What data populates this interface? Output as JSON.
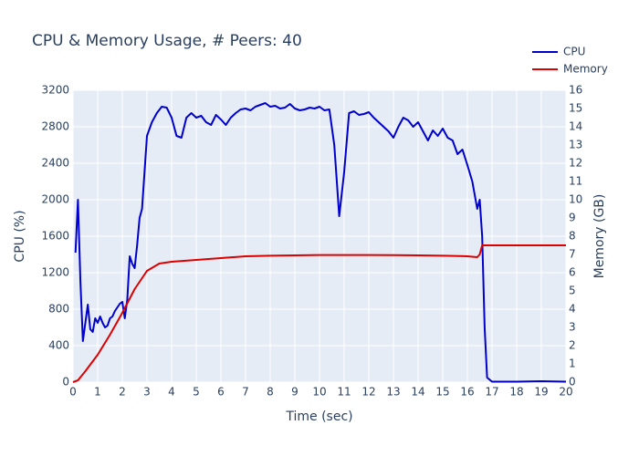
{
  "chart_data": {
    "type": "line",
    "title": "CPU & Memory Usage, # Peers: 40",
    "x_label": "Time (sec)",
    "y_label": "CPU (%)",
    "y2_label": "Memory (GB)",
    "xlim": [
      0,
      20
    ],
    "xticks": [
      0,
      1,
      2,
      3,
      4,
      5,
      6,
      7,
      8,
      9,
      10,
      11,
      12,
      13,
      14,
      15,
      16,
      17,
      18,
      19,
      20
    ],
    "ylim": [
      0,
      3200
    ],
    "yticks": [
      0,
      400,
      800,
      1200,
      1600,
      2000,
      2400,
      2800,
      3200
    ],
    "y2lim": [
      0,
      16
    ],
    "y2ticks": [
      0,
      1,
      2,
      3,
      4,
      5,
      6,
      7,
      8,
      9,
      10,
      11,
      12,
      13,
      14,
      15,
      16
    ],
    "grid": true,
    "legend": "top-right",
    "background": "#e5ecf6",
    "series": [
      {
        "name": "CPU",
        "color": "#0000cc",
        "x": [
          0.1,
          0.2,
          0.3,
          0.4,
          0.5,
          0.6,
          0.7,
          0.8,
          0.9,
          1.0,
          1.1,
          1.2,
          1.3,
          1.4,
          1.5,
          1.6,
          1.7,
          1.8,
          1.9,
          2.0,
          2.1,
          2.2,
          2.3,
          2.4,
          2.5,
          2.6,
          2.7,
          2.8,
          2.9,
          3.0,
          3.2,
          3.4,
          3.6,
          3.8,
          4.0,
          4.2,
          4.4,
          4.6,
          4.8,
          5.0,
          5.2,
          5.4,
          5.6,
          5.8,
          6.0,
          6.2,
          6.4,
          6.6,
          6.8,
          7.0,
          7.2,
          7.4,
          7.6,
          7.8,
          8.0,
          8.2,
          8.4,
          8.6,
          8.8,
          9.0,
          9.2,
          9.4,
          9.6,
          9.8,
          10.0,
          10.2,
          10.4,
          10.6,
          10.8,
          11.0,
          11.2,
          11.4,
          11.6,
          11.8,
          12.0,
          12.2,
          12.4,
          12.6,
          12.8,
          13.0,
          13.2,
          13.4,
          13.6,
          13.8,
          14.0,
          14.2,
          14.4,
          14.6,
          14.8,
          15.0,
          15.2,
          15.4,
          15.6,
          15.8,
          16.0,
          16.2,
          16.4,
          16.5,
          16.6,
          16.7,
          16.8,
          17.0,
          18.0,
          19.0,
          20.0
        ],
        "values": [
          1420,
          2000,
          1100,
          450,
          650,
          850,
          580,
          550,
          700,
          650,
          720,
          650,
          600,
          620,
          700,
          720,
          780,
          820,
          860,
          880,
          700,
          900,
          1380,
          1300,
          1250,
          1500,
          1800,
          1900,
          2300,
          2700,
          2850,
          2950,
          3020,
          3010,
          2900,
          2700,
          2680,
          2900,
          2950,
          2900,
          2920,
          2850,
          2820,
          2930,
          2880,
          2820,
          2900,
          2950,
          2990,
          3000,
          2980,
          3020,
          3040,
          3060,
          3020,
          3030,
          3000,
          3010,
          3050,
          3000,
          2980,
          2990,
          3010,
          3000,
          3020,
          2980,
          2990,
          2600,
          1820,
          2300,
          2950,
          2970,
          2930,
          2940,
          2960,
          2900,
          2850,
          2800,
          2750,
          2680,
          2800,
          2900,
          2870,
          2800,
          2850,
          2750,
          2650,
          2760,
          2700,
          2780,
          2680,
          2650,
          2500,
          2550,
          2380,
          2200,
          1900,
          2000,
          1600,
          600,
          50,
          5,
          5,
          10,
          5
        ]
      },
      {
        "name": "Memory",
        "color": "#dd0000",
        "axis": "y2",
        "x": [
          0,
          0.2,
          0.5,
          1,
          1.5,
          2,
          2.5,
          3,
          3.5,
          4,
          5,
          6,
          7,
          8,
          9,
          10,
          11,
          12,
          13,
          14,
          15,
          16,
          16.4,
          16.5,
          16.6,
          17,
          18,
          19,
          20
        ],
        "values": [
          0,
          0.1,
          0.6,
          1.5,
          2.6,
          3.8,
          5.1,
          6.1,
          6.5,
          6.6,
          6.7,
          6.8,
          6.9,
          6.93,
          6.95,
          6.97,
          6.97,
          6.97,
          6.96,
          6.95,
          6.93,
          6.9,
          6.85,
          7.0,
          7.5,
          7.5,
          7.5,
          7.5,
          7.5
        ]
      }
    ]
  }
}
